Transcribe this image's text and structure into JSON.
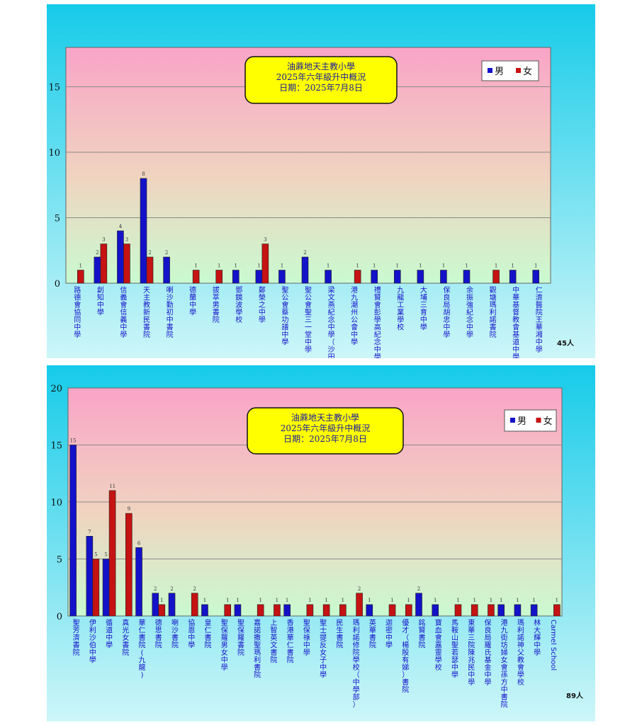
{
  "colors": {
    "bg_top": "#16cbe9",
    "bg_bottom": "#cdf6f8",
    "plot_top": "#f9a4c7",
    "plot_bottom": "#c9fad0",
    "male": "#1412c8",
    "female": "#c51212",
    "title_box": "#ffff00",
    "grid": "#8a8a8a"
  },
  "chart_data": [
    {
      "type": "bar",
      "title": "油蔴地天主教小學\n2025年六年級升中概況\n日期：2025年7月8日",
      "legend": [
        "男",
        "女"
      ],
      "legend_position": "top-right",
      "grid": true,
      "ylim": [
        0,
        18
      ],
      "yticks": [
        0,
        5,
        10,
        15
      ],
      "total_label": "45人",
      "categories": [
        "路德會協同中學",
        "創知中學",
        "信義會信義中學",
        "天主教新民書院",
        "喇沙勤初中書院",
        "德蘭中學",
        "拔萃男書院",
        "鄧鏡波學校",
        "鄭榮之中學",
        "聖公會蔡功譜中學",
        "聖公會聖三一堂中學",
        "梁文燕紀念中學（沙田）",
        "港九潮州公會中學",
        "禮賢會彭學高紀念中學",
        "九龍工業學校",
        "大埔三育中學",
        "保良局胡忠中學",
        "余振強紀念中學",
        "觀塘瑪利諾書院",
        "中華基督教會基道中學",
        "仁濟醫院王華湘中學"
      ],
      "series": [
        {
          "name": "男",
          "values": [
            0,
            2,
            4,
            8,
            2,
            0,
            0,
            1,
            1,
            1,
            2,
            1,
            0,
            1,
            1,
            1,
            1,
            1,
            0,
            1,
            1
          ]
        },
        {
          "name": "女",
          "values": [
            1,
            3,
            3,
            2,
            0,
            1,
            1,
            0,
            3,
            0,
            0,
            0,
            1,
            0,
            0,
            0,
            0,
            0,
            1,
            0,
            0
          ]
        }
      ]
    },
    {
      "type": "bar",
      "title": "油蔴地天主教小學\n2025年六年級升中概況\n日期：2025年7月8日",
      "legend": [
        "男",
        "女"
      ],
      "legend_position": "top-right",
      "grid": true,
      "ylim": [
        0,
        20
      ],
      "yticks": [
        0,
        5,
        10,
        15,
        20
      ],
      "total_label": "89人",
      "categories": [
        "聖芳濟書院",
        "伊利沙伯中學",
        "循道中學",
        "真光女書院",
        "華仁書院(九龍)",
        "德思書院",
        "喇沙書院",
        "協恩中學",
        "皇仁書院",
        "聖保羅男女中學",
        "聖保羅書院",
        "嘉諾撒聖瑪利書院",
        "上智英文書院",
        "香港華仁書院",
        "聖保祿中學",
        "聖士提反女子中學",
        "民生書院",
        "瑪利諾修院學校（中學部）",
        "英華書院",
        "迦密中學",
        "優才（楊殷有娣）書院",
        "銘賢書院",
        "寶血會嘉靈學校",
        "馬鞍山聖若瑟中學",
        "東華三院陳兆民中學",
        "保良局羅氏基金中學",
        "港九街坊婦女會孫方中書院",
        "瑪利諾神父教會學校",
        "林大輝中學",
        "Carmel School"
      ],
      "series": [
        {
          "name": "男",
          "values": [
            15,
            7,
            5,
            0,
            6,
            2,
            2,
            0,
            1,
            0,
            1,
            0,
            0,
            1,
            0,
            0,
            0,
            0,
            1,
            0,
            0,
            2,
            1,
            0,
            0,
            0,
            1,
            1,
            1,
            0
          ]
        },
        {
          "name": "女",
          "values": [
            0,
            5,
            11,
            9,
            0,
            1,
            0,
            2,
            0,
            1,
            0,
            1,
            1,
            0,
            1,
            1,
            1,
            2,
            0,
            1,
            1,
            0,
            0,
            1,
            1,
            1,
            0,
            0,
            0,
            1
          ]
        }
      ]
    }
  ]
}
